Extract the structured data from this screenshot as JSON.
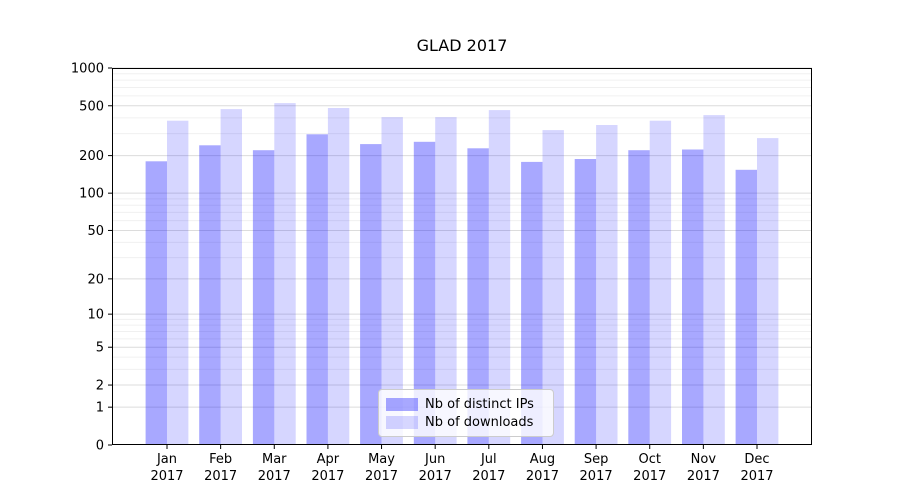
{
  "title": "GLAD 2017",
  "chart_data": {
    "type": "bar",
    "title": "GLAD 2017",
    "categories": [
      "Jan 2017",
      "Feb 2017",
      "Mar 2017",
      "Apr 2017",
      "May 2017",
      "Jun 2017",
      "Jul 2017",
      "Aug 2017",
      "Sep 2017",
      "Oct 2017",
      "Nov 2017",
      "Dec 2017"
    ],
    "series": [
      {
        "name": "Nb of distinct IPs",
        "color": "rgba(0,0,255,0.34)",
        "values": [
          180,
          242,
          221,
          296,
          247,
          258,
          229,
          178,
          188,
          221,
          224,
          154
        ]
      },
      {
        "name": "Nb of downloads",
        "color": "rgba(0,0,255,0.16)",
        "values": [
          380,
          470,
          525,
          480,
          406,
          406,
          462,
          320,
          351,
          380,
          421,
          276
        ]
      }
    ],
    "xlabel": "",
    "ylabel": "",
    "yscale": "log1p",
    "ylim": [
      0,
      1000
    ],
    "y_major_ticks": [
      0,
      1,
      2,
      5,
      10,
      20,
      50,
      100,
      200,
      500,
      1000
    ],
    "y_major_tick_labels": [
      "0",
      "1",
      "2",
      "5",
      "10",
      "20",
      "50",
      "100",
      "200",
      "500",
      "1000"
    ],
    "y_minor_ticks": [
      3,
      4,
      6,
      7,
      8,
      9,
      30,
      40,
      60,
      70,
      80,
      90,
      300,
      400,
      600,
      700,
      800,
      900
    ],
    "grid": "horizontal, major and minor, on",
    "legend_position": "lower center inside axes"
  },
  "colors": {
    "bar_distinct_ips": "rgba(0,0,255,0.34)",
    "bar_downloads": "rgba(0,0,255,0.16)",
    "grid_major": "#dcdcdc",
    "grid_minor": "#f0f0f0",
    "spine": "#000000",
    "text": "#000000",
    "legend_border": "#cccccc"
  }
}
